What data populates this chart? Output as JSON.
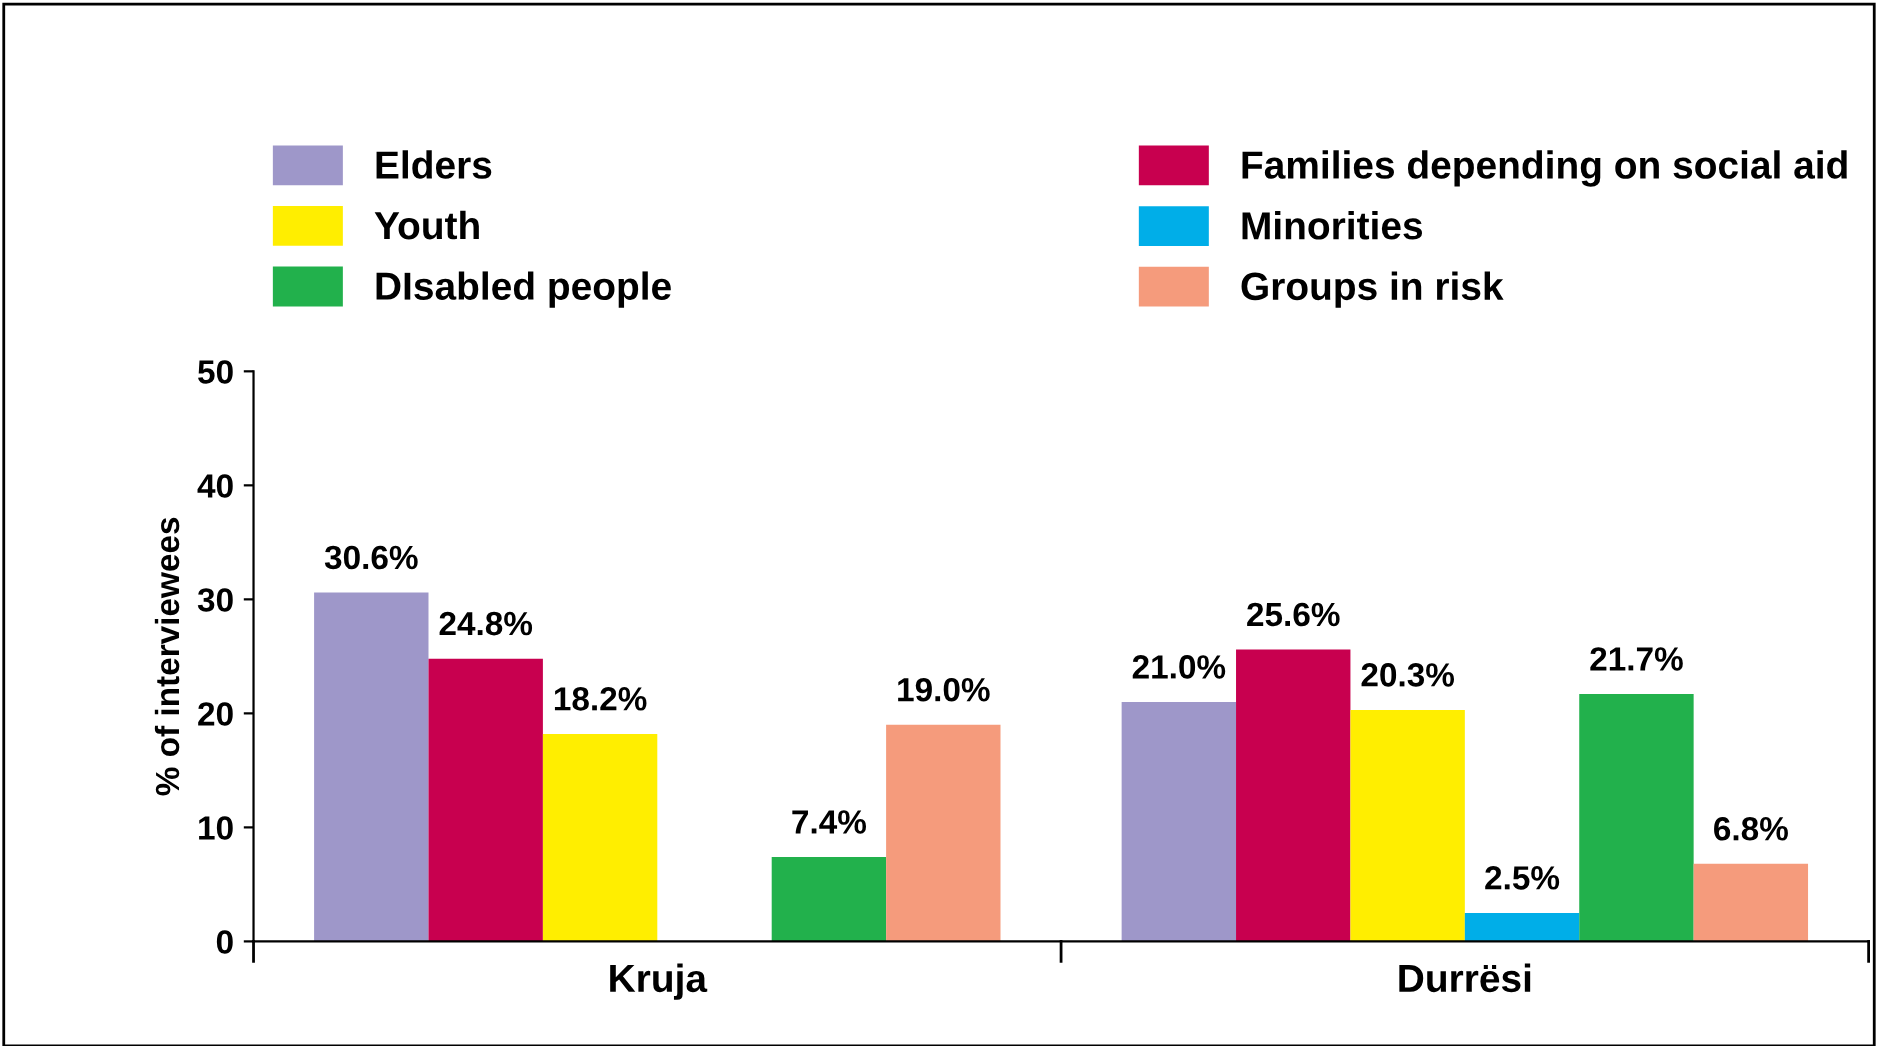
{
  "chart_data": {
    "type": "bar",
    "ylabel": "% of interviewees",
    "categories": [
      "Kruja",
      "Durrësi"
    ],
    "series": [
      {
        "name": "Elders",
        "color": "#9e97c9",
        "values": [
          30.6,
          21.0
        ],
        "value_labels": [
          "30.6%",
          "21.0%"
        ]
      },
      {
        "name": "Families depending on social aid",
        "color": "#c8004f",
        "values": [
          24.8,
          25.6
        ],
        "value_labels": [
          "24.8%",
          "25.6%"
        ]
      },
      {
        "name": "Youth",
        "color": "#ffee00",
        "values": [
          18.2,
          20.3
        ],
        "value_labels": [
          "18.2%",
          "20.3%"
        ]
      },
      {
        "name": "Minorities",
        "color": "#00aee8",
        "values": [
          null,
          2.5
        ],
        "value_labels": [
          null,
          "2.5%"
        ]
      },
      {
        "name": "DIsabled people",
        "color": "#22b14c",
        "values": [
          7.4,
          21.7
        ],
        "value_labels": [
          "7.4%",
          "21.7%"
        ]
      },
      {
        "name": "Groups in risk",
        "color": "#f59b7c",
        "values": [
          19.0,
          6.8
        ],
        "value_labels": [
          "19.0%",
          "6.8%"
        ]
      }
    ],
    "ylim": [
      0,
      50
    ],
    "yticks": [
      0,
      10,
      20,
      30,
      40,
      50
    ],
    "grid": false,
    "legend": "top"
  }
}
